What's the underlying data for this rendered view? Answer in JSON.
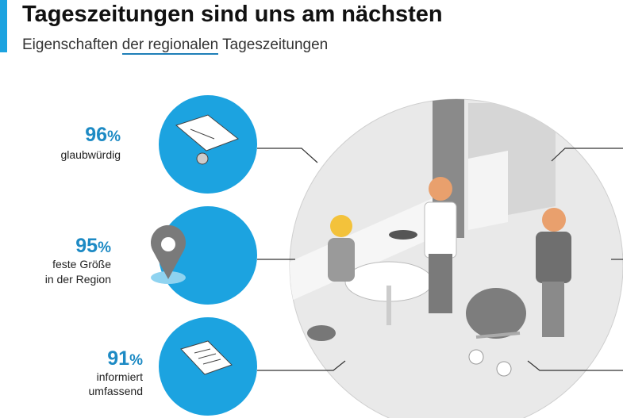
{
  "header": {
    "title": "Tageszeitungen sind uns am nächsten",
    "subtitle": [
      "Eigenschaften ",
      "der regionalen",
      " Tageszeitungen"
    ]
  },
  "items": [
    {
      "value": "96",
      "unit": "%",
      "label": [
        "glaubwürdig"
      ]
    },
    {
      "value": "95",
      "unit": "%",
      "label": [
        "feste Größe",
        "in der Region"
      ]
    },
    {
      "value": "91",
      "unit": "%",
      "label": [
        "informiert",
        "umfassend"
      ]
    }
  ]
}
